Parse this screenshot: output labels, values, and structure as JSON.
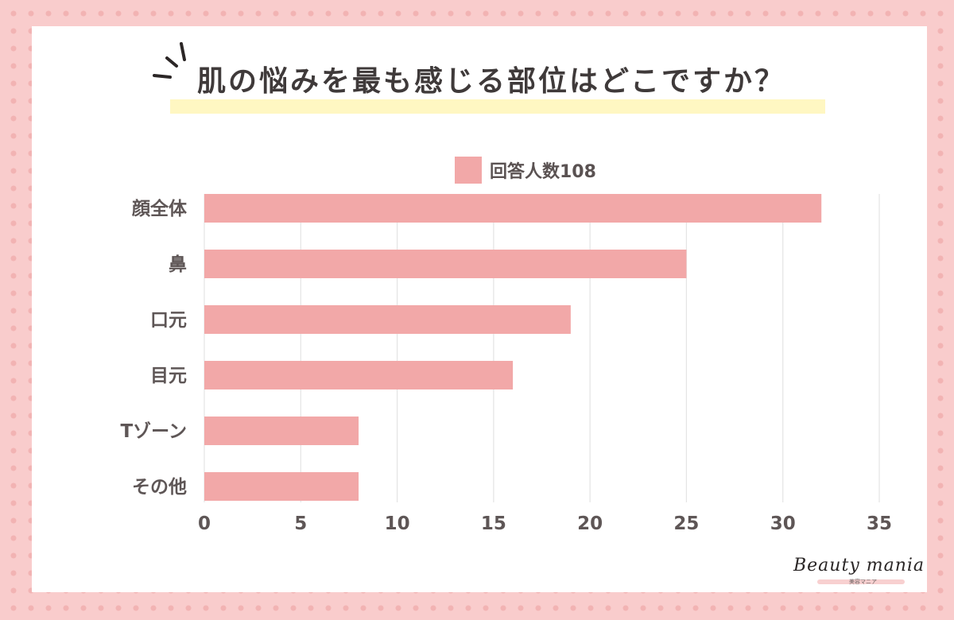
{
  "header": {
    "title": "肌の悩みを最も感じる部位はどこですか？"
  },
  "chart_data": {
    "type": "bar",
    "orientation": "horizontal",
    "categories": [
      "顔全体",
      "鼻",
      "口元",
      "目元",
      "Tゾーン",
      "その他"
    ],
    "series": [
      {
        "name": "回答人数108",
        "values": [
          32,
          25,
          19,
          16,
          8,
          8
        ]
      }
    ],
    "xlim": [
      0,
      35
    ],
    "xticks": [
      0,
      5,
      10,
      15,
      20,
      25,
      30,
      35
    ],
    "grid": true,
    "legend": "top-center",
    "colors": {
      "bar": "#f2a8a8",
      "grid": "#e4e4e4",
      "axis_text": "#5e5656"
    }
  },
  "brand": {
    "logo_text": "Beauty mania",
    "logo_sub": "美容マニア"
  }
}
